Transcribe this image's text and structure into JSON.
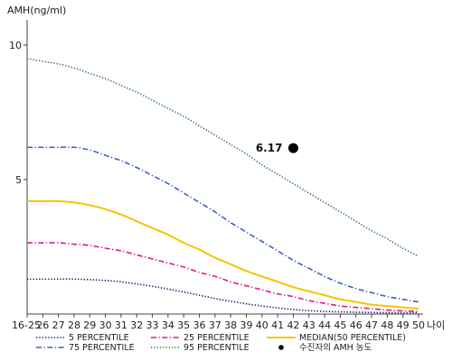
{
  "chart_data": {
    "type": "line",
    "ylabel": "AMH(ng/ml)",
    "xlabel": "나이",
    "ylim": [
      0,
      11
    ],
    "yticks": [
      5,
      10
    ],
    "categories": [
      "16-25",
      "26",
      "27",
      "28",
      "29",
      "30",
      "31",
      "32",
      "33",
      "34",
      "35",
      "36",
      "37",
      "38",
      "39",
      "40",
      "41",
      "42",
      "43",
      "44",
      "45",
      "46",
      "47",
      "48",
      "49",
      "50"
    ],
    "series": [
      {
        "name": "95 PERCENTILE",
        "color": "#2e7d32",
        "dash": "dotted",
        "values": [
          9.5,
          9.4,
          9.3,
          9.15,
          8.95,
          8.75,
          8.5,
          8.25,
          7.95,
          7.65,
          7.35,
          7.0,
          6.65,
          6.3,
          5.95,
          5.55,
          5.2,
          4.85,
          4.5,
          4.15,
          3.8,
          3.45,
          3.1,
          2.8,
          2.45,
          2.15
        ]
      },
      {
        "name": "75 PERCENTILE",
        "color": "#3f5fc8",
        "dash": "dashdot",
        "values": [
          6.2,
          6.2,
          6.2,
          6.2,
          6.1,
          5.9,
          5.7,
          5.45,
          5.15,
          4.85,
          4.5,
          4.15,
          3.8,
          3.4,
          3.05,
          2.7,
          2.35,
          2.0,
          1.7,
          1.4,
          1.15,
          0.95,
          0.8,
          0.65,
          0.55,
          0.45
        ]
      },
      {
        "name": "MEDIAN(50 PERCENTILE)",
        "color": "#f5c400",
        "dash": "solid",
        "values": [
          4.2,
          4.2,
          4.2,
          4.15,
          4.05,
          3.9,
          3.7,
          3.45,
          3.2,
          2.95,
          2.65,
          2.4,
          2.1,
          1.85,
          1.6,
          1.4,
          1.2,
          1.0,
          0.85,
          0.7,
          0.55,
          0.45,
          0.35,
          0.3,
          0.25,
          0.2
        ]
      },
      {
        "name": "25 PERCENTILE",
        "color": "#e0198c",
        "dash": "dashdot",
        "values": [
          2.65,
          2.65,
          2.65,
          2.6,
          2.55,
          2.45,
          2.35,
          2.2,
          2.05,
          1.9,
          1.75,
          1.55,
          1.4,
          1.2,
          1.05,
          0.9,
          0.75,
          0.65,
          0.5,
          0.4,
          0.3,
          0.25,
          0.2,
          0.15,
          0.12,
          0.1
        ]
      },
      {
        "name": "5 PERCENTILE",
        "color": "#0d1a66",
        "dash": "dotted",
        "values": [
          1.3,
          1.3,
          1.3,
          1.3,
          1.28,
          1.25,
          1.2,
          1.12,
          1.03,
          0.93,
          0.82,
          0.7,
          0.58,
          0.48,
          0.38,
          0.3,
          0.23,
          0.17,
          0.13,
          0.1,
          0.08,
          0.07,
          0.06,
          0.05,
          0.05,
          0.05
        ]
      }
    ],
    "marker": {
      "name": "수진자의 AMH 농도",
      "x": "42",
      "y": 6.17,
      "label": "6.17"
    },
    "legend": {
      "position": "bottom",
      "order": [
        "5 PERCENTILE",
        "25 PERCENTILE",
        "MEDIAN(50 PERCENTILE)",
        "75 PERCENTILE",
        "95 PERCENTILE",
        "수진자의 AMH 농도"
      ]
    },
    "grid": false
  }
}
